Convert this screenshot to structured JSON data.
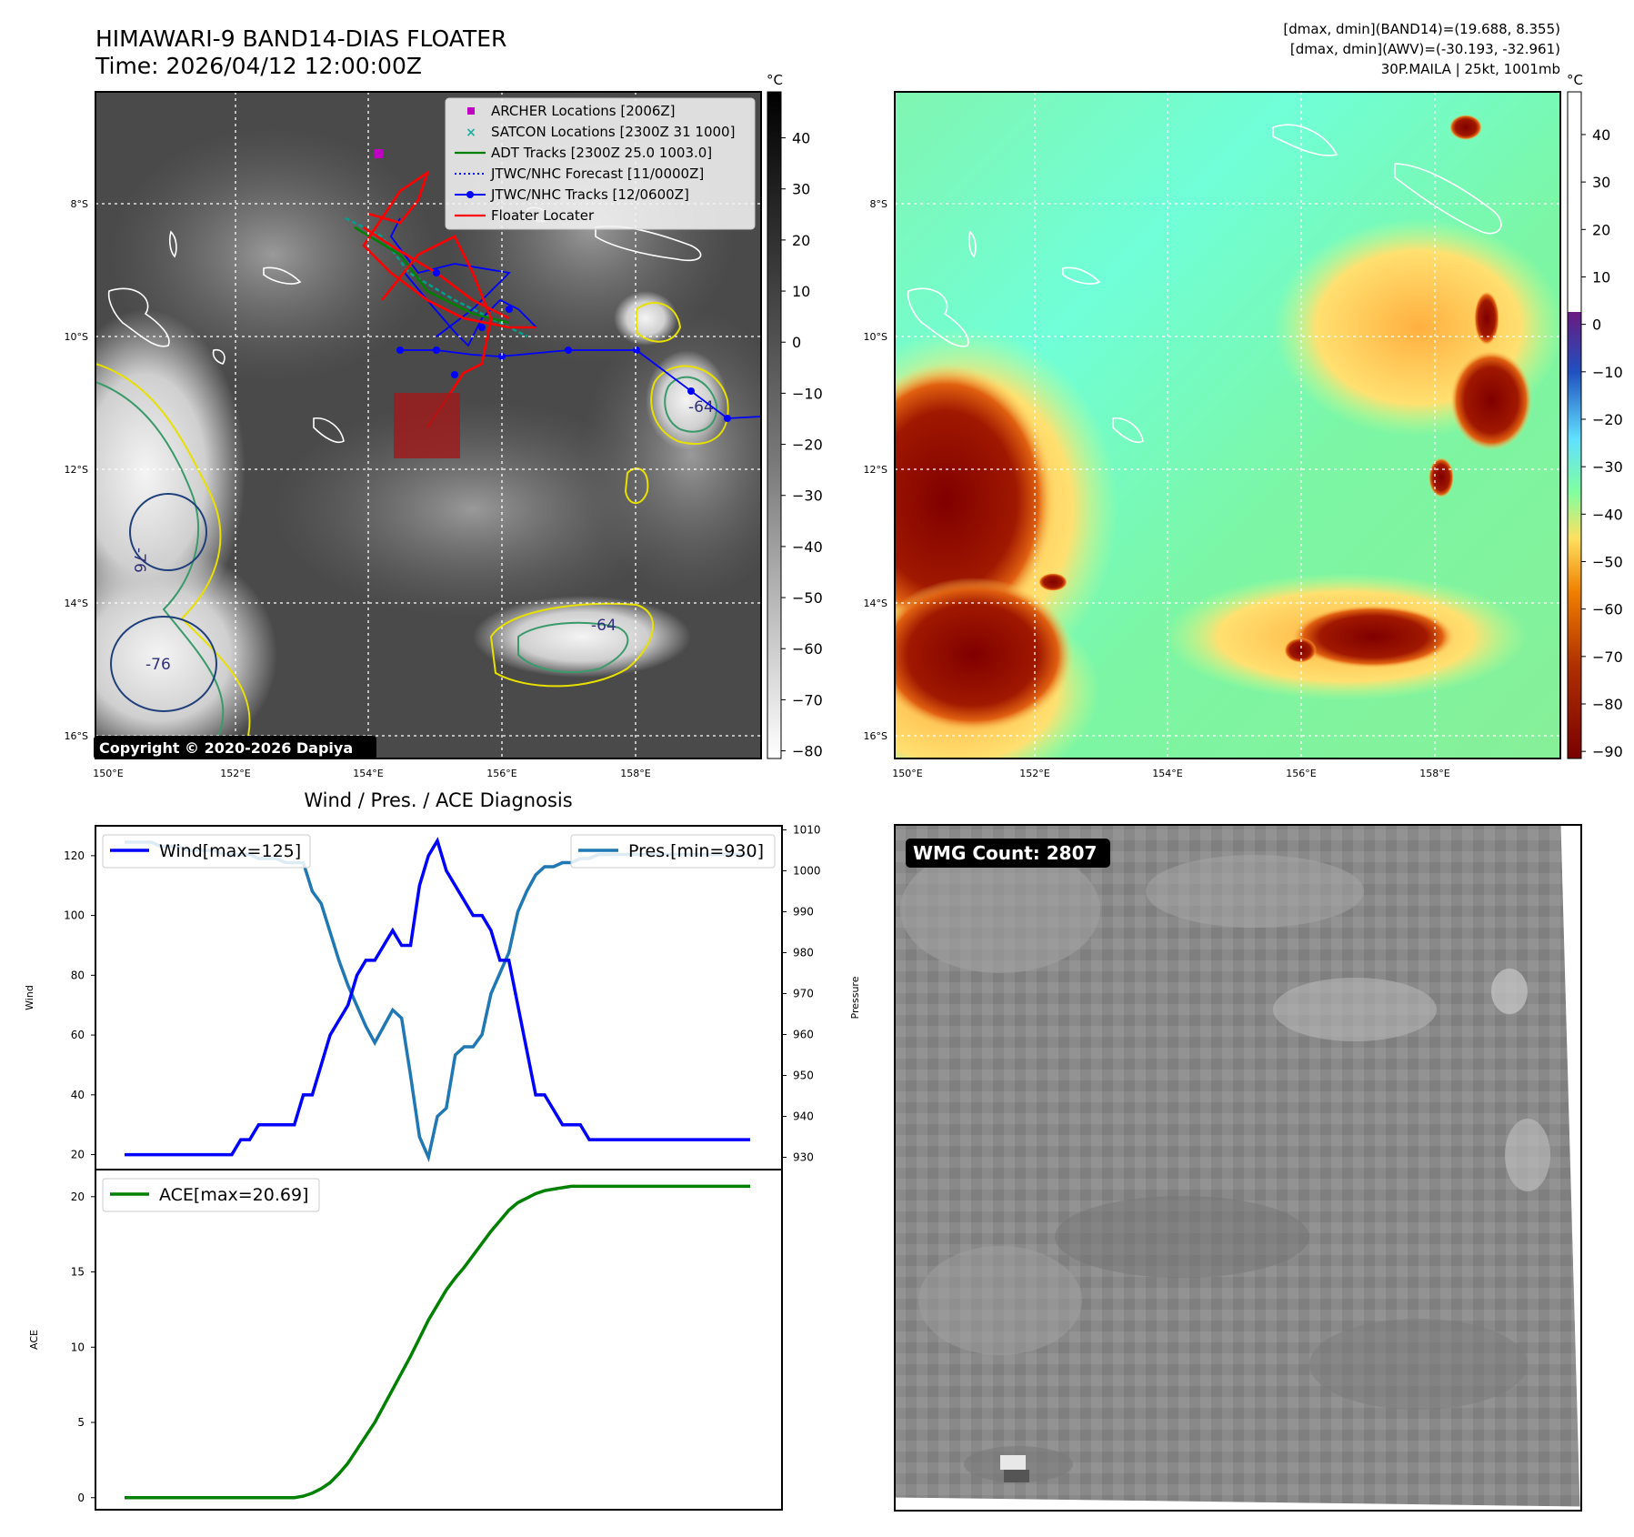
{
  "header": {
    "title_line1": "HIMAWARI-9 BAND14-DIAS FLOATER",
    "title_line2": "Time: 2026/04/12 12:00:00Z",
    "info_line1": "[dmax, dmin](BAND14)=(19.688, 8.355)",
    "info_line2": "[dmax, dmin](AWV)=(-30.193, -32.961)",
    "info_line3": "30P.MAILA | 25kt, 1001mb"
  },
  "map_axes": {
    "lat_labels": [
      "8°S",
      "10°S",
      "12°S",
      "14°S",
      "16°S"
    ],
    "lon_labels": [
      "150°E",
      "152°E",
      "154°E",
      "156°E",
      "158°E"
    ]
  },
  "ir_panel": {
    "colorbar_unit": "°C",
    "colorbar_ticks": [
      "40",
      "30",
      "20",
      "10",
      "0",
      "−10",
      "−20",
      "−30",
      "−40",
      "−50",
      "−60",
      "−70",
      "−80"
    ],
    "legend": [
      {
        "label": "ARCHER Locations [2006Z]",
        "color": "#c000c0",
        "kind": "square"
      },
      {
        "label": "SATCON Locations [2300Z 31 1000]",
        "color": "#20b0a0",
        "kind": "x"
      },
      {
        "label": "ADT Tracks [2300Z 25.0 1003.0]",
        "color": "#008000",
        "kind": "line"
      },
      {
        "label": "JTWC/NHC Forecast [11/0000Z]",
        "color": "#0000ff",
        "kind": "dotted"
      },
      {
        "label": "JTWC/NHC Tracks [12/0600Z]",
        "color": "#0000ff",
        "kind": "linedot"
      },
      {
        "label": "Floater Locater",
        "color": "#ff0000",
        "kind": "line"
      }
    ],
    "contour_labels": [
      "-76",
      "-76",
      "-64",
      "-64"
    ],
    "copyright": "Copyright © 2020-2026 Dapiya"
  },
  "awv_panel": {
    "colorbar_unit": "°C",
    "colorbar_ticks": [
      "40",
      "30",
      "20",
      "10",
      "0",
      "−10",
      "−20",
      "−30",
      "−40",
      "−50",
      "−60",
      "−70",
      "−80",
      "−90"
    ]
  },
  "wmg_panel": {
    "badge": "WMG Count: 2807"
  },
  "chart_data": [
    {
      "type": "line",
      "title": "Wind / Pres. / ACE Diagnosis",
      "ylabel": "Wind",
      "ylabel_right": "Pressure",
      "ylim": [
        15,
        130
      ],
      "ylim_right": [
        927,
        1011
      ],
      "yticks": [
        20,
        40,
        60,
        80,
        100,
        120
      ],
      "yticks_right": [
        930,
        940,
        950,
        960,
        970,
        980,
        990,
        1000,
        1010
      ],
      "x": [
        0,
        1,
        2,
        3,
        4,
        5,
        6,
        7,
        8,
        9,
        10,
        11,
        12,
        13,
        14,
        15,
        16,
        17,
        18,
        19,
        20,
        21,
        22,
        23,
        24,
        25,
        26,
        27,
        28,
        29,
        30,
        31,
        32,
        33,
        34,
        35,
        36,
        37,
        38,
        39,
        40,
        41,
        42,
        43,
        44,
        45,
        46,
        47,
        48,
        49,
        50,
        51,
        52,
        53,
        54,
        55,
        56,
        57,
        58,
        59,
        60,
        61,
        62,
        63,
        64,
        65,
        66,
        67,
        68,
        69,
        70
      ],
      "series": [
        {
          "name": "Wind[max=125]",
          "color": "#0000ff",
          "values": [
            20,
            20,
            20,
            20,
            20,
            20,
            20,
            20,
            20,
            20,
            20,
            20,
            20,
            25,
            25,
            30,
            30,
            30,
            30,
            30,
            40,
            40,
            50,
            60,
            65,
            70,
            80,
            85,
            85,
            90,
            95,
            90,
            90,
            110,
            120,
            125,
            115,
            110,
            105,
            100,
            100,
            95,
            85,
            85,
            70,
            55,
            40,
            40,
            35,
            30,
            30,
            30,
            25,
            25,
            25,
            25,
            25,
            25,
            25,
            25,
            25,
            25,
            25,
            25,
            25,
            25,
            25,
            25,
            25,
            25,
            25
          ]
        },
        {
          "name": "Pres.[min=930]",
          "color": "#1f77b4",
          "values": [
            1007,
            1007,
            1007,
            1007,
            1006,
            1006,
            1006,
            1005,
            1005,
            1005,
            1005,
            1004,
            1004,
            1004,
            1004,
            1003,
            1003,
            1003,
            1002,
            1002,
            1002,
            995,
            992,
            985,
            978,
            972,
            967,
            962,
            958,
            962,
            966,
            964,
            950,
            935,
            930,
            940,
            942,
            955,
            957,
            957,
            960,
            970,
            975,
            980,
            990,
            995,
            999,
            1001,
            1001,
            1002,
            1002,
            1003,
            1003,
            1004,
            1004,
            1004,
            1004,
            1004,
            1004,
            1004,
            1004,
            1004,
            1004,
            1004,
            1004,
            1004,
            1004,
            1004,
            1004,
            1004,
            1004
          ]
        }
      ]
    },
    {
      "type": "line",
      "title": "",
      "ylabel": "ACE",
      "ylim": [
        -0.8,
        21.8
      ],
      "yticks": [
        0,
        5,
        10,
        15,
        20
      ],
      "series": [
        {
          "name": "ACE[max=20.69]",
          "color": "#008000",
          "values": [
            0,
            0,
            0,
            0,
            0,
            0,
            0,
            0,
            0,
            0,
            0,
            0,
            0,
            0,
            0,
            0,
            0,
            0,
            0,
            0,
            0.1,
            0.3,
            0.6,
            1.0,
            1.6,
            2.3,
            3.2,
            4.1,
            5.0,
            6.1,
            7.2,
            8.3,
            9.4,
            10.6,
            11.8,
            12.8,
            13.8,
            14.6,
            15.3,
            16.1,
            16.9,
            17.7,
            18.4,
            19.1,
            19.6,
            19.9,
            20.2,
            20.4,
            20.5,
            20.6,
            20.69,
            20.69,
            20.69,
            20.69,
            20.69,
            20.69,
            20.69,
            20.69,
            20.69,
            20.69,
            20.69,
            20.69,
            20.69,
            20.69,
            20.69,
            20.69,
            20.69,
            20.69,
            20.69,
            20.69,
            20.69
          ]
        }
      ]
    }
  ]
}
